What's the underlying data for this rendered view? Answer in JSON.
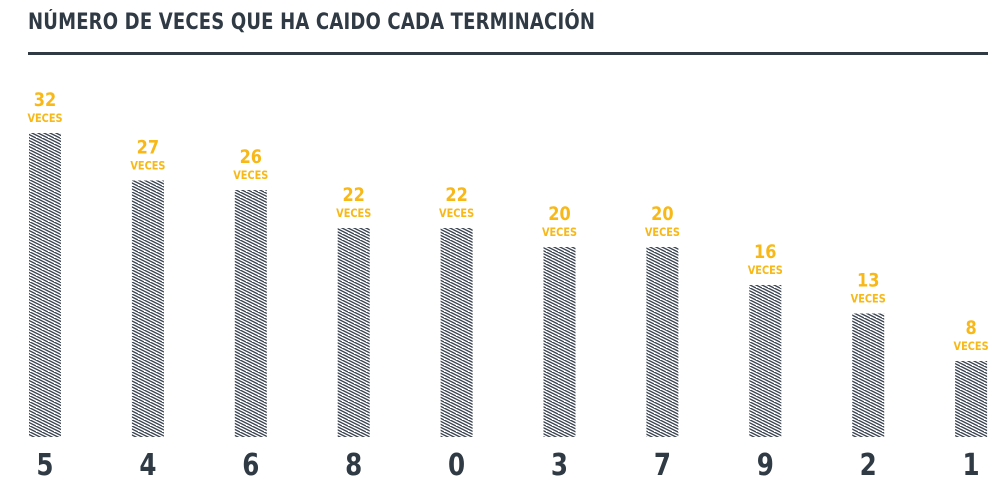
{
  "title": "NÚMERO DE VECES QUE HA CAIDO CADA TERMINACIÓN",
  "colors": {
    "accent": "#f7b818",
    "ink": "#2f3a45",
    "hatch": "#3a4450"
  },
  "chart_data": {
    "type": "bar",
    "title": "NÚMERO DE VECES QUE HA CAIDO CADA TERMINACIÓN",
    "categories": [
      "5",
      "4",
      "6",
      "8",
      "0",
      "3",
      "7",
      "9",
      "2",
      "1"
    ],
    "values": [
      32,
      27,
      26,
      22,
      22,
      20,
      20,
      16,
      13,
      8
    ],
    "value_labels": [
      "32",
      "27",
      "26",
      "22",
      "22",
      "20",
      "20",
      "16",
      "13",
      "8"
    ],
    "unit_label": "VECES",
    "xlabel": "",
    "ylabel": "",
    "ylim": [
      0,
      32
    ],
    "grid": false,
    "legend": "none"
  }
}
